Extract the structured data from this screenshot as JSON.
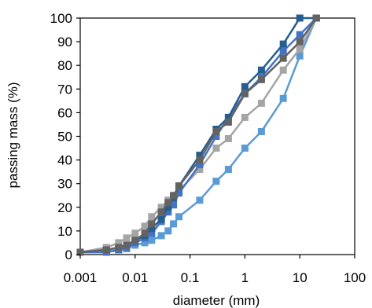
{
  "chart_data": {
    "type": "line",
    "title": "",
    "xlabel": "diameter (mm)",
    "ylabel": "passing mass (%)",
    "x_scale": "log",
    "xlim": [
      0.001,
      100
    ],
    "ylim": [
      0,
      100
    ],
    "x_ticks": [
      0.001,
      0.01,
      0.1,
      1,
      10,
      100
    ],
    "x_tick_labels": [
      "0.001",
      "0.01",
      "0.1",
      "1",
      "10",
      "100"
    ],
    "y_ticks": [
      0,
      10,
      20,
      30,
      40,
      50,
      60,
      70,
      80,
      90,
      100
    ],
    "y_tick_labels": [
      "0",
      "10",
      "20",
      "30",
      "40",
      "50",
      "60",
      "70",
      "80",
      "90",
      "100"
    ],
    "grid": false,
    "legend": "none",
    "marker": "square",
    "series": [
      {
        "color": "#5b9bd5",
        "x": [
          0.001,
          0.003,
          0.005,
          0.007,
          0.01,
          0.015,
          0.02,
          0.03,
          0.04,
          0.05,
          0.063,
          0.15,
          0.3,
          0.5,
          1,
          2,
          5,
          10,
          20
        ],
        "y": [
          1,
          1,
          2,
          2.5,
          4,
          5,
          6,
          8,
          10,
          13,
          16,
          23,
          31,
          36,
          45,
          52,
          66,
          84,
          100
        ]
      },
      {
        "color": "#a5a5a5",
        "x": [
          0.001,
          0.003,
          0.005,
          0.007,
          0.01,
          0.015,
          0.02,
          0.03,
          0.04,
          0.05,
          0.063,
          0.15,
          0.3,
          0.5,
          1,
          2,
          5,
          10,
          20
        ],
        "y": [
          1,
          3,
          5,
          7,
          9,
          12,
          16,
          20,
          23,
          25,
          27,
          36,
          45,
          49,
          58,
          64,
          78,
          87,
          100
        ]
      },
      {
        "color": "#4472c4",
        "x": [
          0.001,
          0.003,
          0.005,
          0.007,
          0.01,
          0.015,
          0.02,
          0.03,
          0.04,
          0.05,
          0.063,
          0.15,
          0.3,
          0.5,
          1,
          2,
          5,
          10,
          20
        ],
        "y": [
          1,
          1,
          2,
          3,
          5,
          7,
          9,
          14,
          18,
          21,
          26,
          38,
          50,
          58,
          68,
          75,
          86,
          93,
          100
        ]
      },
      {
        "color": "#255e91",
        "x": [
          0.001,
          0.003,
          0.005,
          0.007,
          0.01,
          0.015,
          0.02,
          0.03,
          0.04,
          0.05,
          0.063,
          0.15,
          0.3,
          0.5,
          1,
          2,
          5,
          10,
          20
        ],
        "y": [
          1,
          2,
          3,
          4,
          6,
          8,
          11,
          15,
          20,
          24,
          29,
          42,
          53,
          58,
          71,
          78,
          89,
          100,
          100
        ]
      },
      {
        "color": "#636363",
        "x": [
          0.001,
          0.003,
          0.005,
          0.007,
          0.01,
          0.015,
          0.02,
          0.03,
          0.04,
          0.05,
          0.063,
          0.15,
          0.3,
          0.5,
          1,
          2,
          5,
          10,
          20
        ],
        "y": [
          1,
          2,
          3,
          4,
          6,
          9,
          13,
          18,
          22,
          25,
          29,
          40,
          52,
          56,
          68,
          74,
          83,
          90,
          100
        ]
      }
    ]
  }
}
